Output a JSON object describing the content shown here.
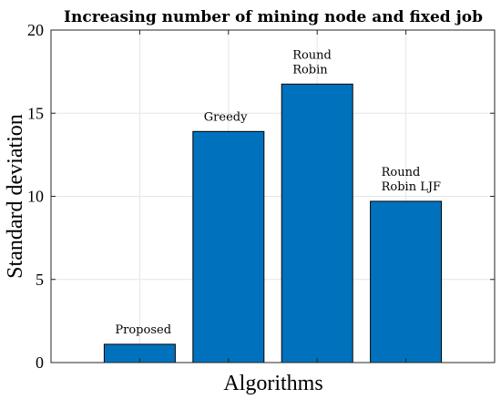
{
  "chart_data": {
    "type": "bar",
    "title": "Increasing number of mining node and fixed job",
    "xlabel": "Algorithms",
    "ylabel": "Standard deviation",
    "ylim": [
      0,
      20
    ],
    "yticks": [
      0,
      5,
      10,
      15,
      20
    ],
    "grid": true,
    "bar_color": "#0072BD",
    "categories": [
      "Proposed",
      "Greedy",
      "Round Robin",
      "Round Robin LJF"
    ],
    "values": [
      1.1,
      13.9,
      16.75,
      9.7
    ],
    "labels": [
      [
        "Proposed"
      ],
      [
        "Greedy"
      ],
      [
        "Round",
        "Robin"
      ],
      [
        "Round",
        "Robin LJF"
      ]
    ]
  }
}
